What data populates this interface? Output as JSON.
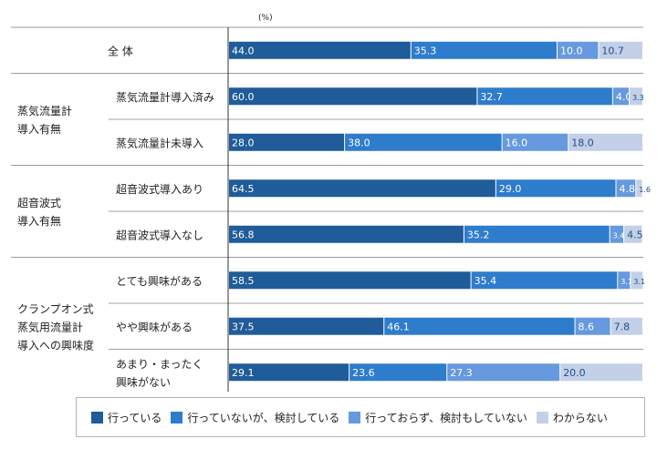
{
  "chart_data": {
    "type": "bar",
    "orientation": "horizontal",
    "stacked": true,
    "unit_label": "(%)",
    "xlim": [
      0,
      100
    ],
    "colors": [
      "#1f5c99",
      "#2e7ccc",
      "#6699dd",
      "#c3d0e8"
    ],
    "legend_position": "bottom",
    "legend": [
      "行っている",
      "行っていないが、検討している",
      "行っておらず、検討もしていない",
      "わからない"
    ],
    "groups": [
      {
        "label": "",
        "rows": [
          {
            "label": "全 体",
            "values": [
              44.0,
              35.3,
              10.0,
              10.7
            ],
            "labels": [
              "44.0",
              "35.3",
              "10.0",
              "10.7"
            ]
          }
        ]
      },
      {
        "label": "蒸気流量計\n導入有無",
        "rows": [
          {
            "label": "蒸気流量計導入済み",
            "values": [
              60.0,
              32.7,
              4.0,
              3.3
            ],
            "labels": [
              "60.0",
              "32.7",
              "4.0",
              "3.3"
            ]
          },
          {
            "label": "蒸気流量計未導入",
            "values": [
              28.0,
              38.0,
              16.0,
              18.0
            ],
            "labels": [
              "28.0",
              "38.0",
              "16.0",
              "18.0"
            ]
          }
        ]
      },
      {
        "label": "超音波式\n導入有無",
        "rows": [
          {
            "label": "超音波式導入あり",
            "values": [
              64.5,
              29.0,
              4.8,
              1.6
            ],
            "labels": [
              "64.5",
              "29.0",
              "4.8",
              "1.6"
            ]
          },
          {
            "label": "超音波式導入なし",
            "values": [
              56.8,
              35.2,
              3.4,
              4.5
            ],
            "labels": [
              "56.8",
              "35.2",
              "3.4",
              "4.5"
            ]
          }
        ]
      },
      {
        "label": "クランプオン式\n蒸気用流量計\n導入への興味度",
        "rows": [
          {
            "label": "とても興味がある",
            "values": [
              58.5,
              35.4,
              3.1,
              3.1
            ],
            "labels": [
              "58.5",
              "35.4",
              "3.1",
              "3.1"
            ]
          },
          {
            "label": "やや興味がある",
            "values": [
              37.5,
              46.1,
              8.6,
              7.8
            ],
            "labels": [
              "37.5",
              "46.1",
              "8.6",
              "7.8"
            ]
          },
          {
            "label": "あまり・まったく\n興味がない",
            "values": [
              29.1,
              23.6,
              27.3,
              20.0
            ],
            "labels": [
              "29.1",
              "23.6",
              "27.3",
              "20.0"
            ]
          }
        ]
      }
    ]
  }
}
